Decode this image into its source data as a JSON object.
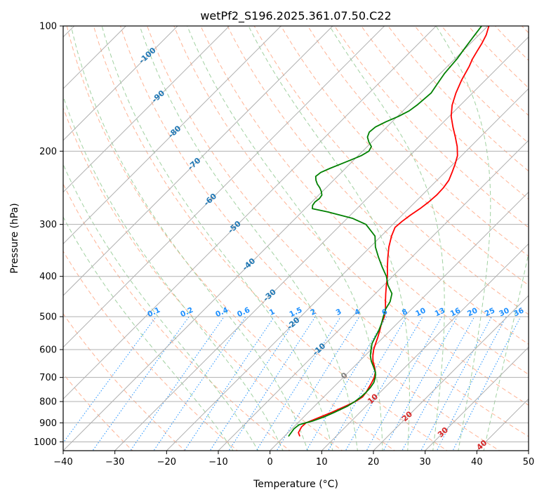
{
  "chart_data": {
    "type": "line",
    "subtype": "skew-t log-p",
    "title": "wetPf2_S196.2025.361.07.50.C22",
    "xlabel": "Temperature (°C)",
    "ylabel": "Pressure (hPa)",
    "xlim": [
      -40,
      50
    ],
    "ylim": [
      1050,
      100
    ],
    "xticks": [
      -40,
      -30,
      -20,
      -10,
      0,
      10,
      20,
      30,
      40,
      50
    ],
    "yticks": [
      100,
      200,
      300,
      400,
      500,
      600,
      700,
      800,
      900,
      1000
    ],
    "grid": true,
    "series": [
      {
        "name": "Temperature",
        "color": "#ff0000",
        "pressure": [
          970,
          950,
          920,
          900,
          880,
          850,
          820,
          800,
          780,
          760,
          740,
          720,
          700,
          680,
          660,
          640,
          620,
          600,
          580,
          560,
          540,
          520,
          500,
          480,
          460,
          440,
          420,
          400,
          380,
          360,
          340,
          320,
          305,
          295,
          285,
          275,
          265,
          255,
          245,
          235,
          225,
          215,
          205,
          195,
          185,
          175,
          165,
          155,
          145,
          135,
          125,
          120,
          115,
          110,
          105,
          100
        ],
        "values": [
          3.0,
          2.0,
          1.5,
          1.6,
          2.7,
          4.5,
          6.0,
          7.0,
          7.5,
          7.3,
          6.9,
          6.5,
          6.0,
          5.2,
          4.0,
          2.6,
          1.5,
          0.5,
          -0.3,
          -1.1,
          -2.0,
          -3.0,
          -3.8,
          -5.0,
          -6.5,
          -8.0,
          -9.5,
          -11.0,
          -12.8,
          -14.6,
          -16.4,
          -18.0,
          -19.0,
          -18.8,
          -18.4,
          -17.8,
          -17.4,
          -17.2,
          -17.3,
          -17.7,
          -18.6,
          -19.6,
          -20.8,
          -22.6,
          -24.8,
          -27.2,
          -29.6,
          -31.6,
          -33.2,
          -34.6,
          -35.8,
          -36.6,
          -37.2,
          -37.8,
          -38.6,
          -39.8
        ]
      },
      {
        "name": "Dewpoint",
        "color": "#008000",
        "pressure": [
          970,
          950,
          930,
          910,
          900,
          890,
          870,
          850,
          820,
          800,
          780,
          760,
          740,
          720,
          700,
          680,
          660,
          640,
          620,
          600,
          580,
          560,
          540,
          520,
          500,
          480,
          460,
          440,
          420,
          400,
          380,
          360,
          340,
          320,
          300,
          290,
          280,
          275,
          270,
          265,
          260,
          255,
          250,
          245,
          240,
          235,
          230,
          225,
          220,
          215,
          210,
          205,
          200,
          195,
          190,
          185,
          180,
          175,
          170,
          165,
          160,
          155,
          150,
          145,
          140,
          135,
          130,
          125,
          120,
          115,
          110,
          105,
          100
        ],
        "values": [
          0.8,
          0.6,
          0.4,
          0.6,
          1.5,
          2.6,
          4.0,
          5.0,
          6.4,
          6.9,
          7.2,
          7.3,
          7.2,
          6.9,
          6.2,
          5.2,
          3.8,
          2.3,
          1.0,
          0.0,
          -1.0,
          -1.6,
          -2.2,
          -3.0,
          -4.0,
          -5.0,
          -5.6,
          -6.8,
          -9.2,
          -11.2,
          -13.8,
          -16.4,
          -19.0,
          -21.2,
          -25.2,
          -29.0,
          -35.0,
          -38.6,
          -39.2,
          -39.4,
          -39.2,
          -39.4,
          -40.2,
          -41.2,
          -42.4,
          -43.4,
          -44.2,
          -44.0,
          -43.0,
          -41.8,
          -40.6,
          -39.4,
          -38.8,
          -39.2,
          -40.6,
          -41.8,
          -42.4,
          -42.2,
          -41.2,
          -39.8,
          -38.8,
          -38.4,
          -38.2,
          -38.0,
          -38.4,
          -38.8,
          -39.2,
          -39.4,
          -39.6,
          -40.0,
          -40.4,
          -40.8,
          -41.2
        ]
      }
    ],
    "isotherm_labels": [
      "-100",
      "-90",
      "-80",
      "-70",
      "-60",
      "-50",
      "-40",
      "-30",
      "-20",
      "-10",
      "0",
      "10",
      "20",
      "30",
      "40"
    ],
    "mixing_ratio_labels": [
      "0.1",
      "0.2",
      "0.4",
      "0.6",
      "1",
      "1.5",
      "2",
      "3",
      "4",
      "6",
      "8",
      "10",
      "13",
      "16",
      "20",
      "25",
      "30",
      "36"
    ],
    "colors": {
      "temperature": "#ff0000",
      "dewpoint": "#008000",
      "isotherm_label": "#1f77b4",
      "isotherm_label_warm": "#d62728",
      "isotherm_label_zero": "#7f7f7f",
      "mixing_ratio": "#1e90ff",
      "dry_adiabat": "#ffa07a",
      "moist_adiabat": "#90c990",
      "grid": "#b0b0b0",
      "mid_isotherm": "#d2b48c"
    }
  }
}
